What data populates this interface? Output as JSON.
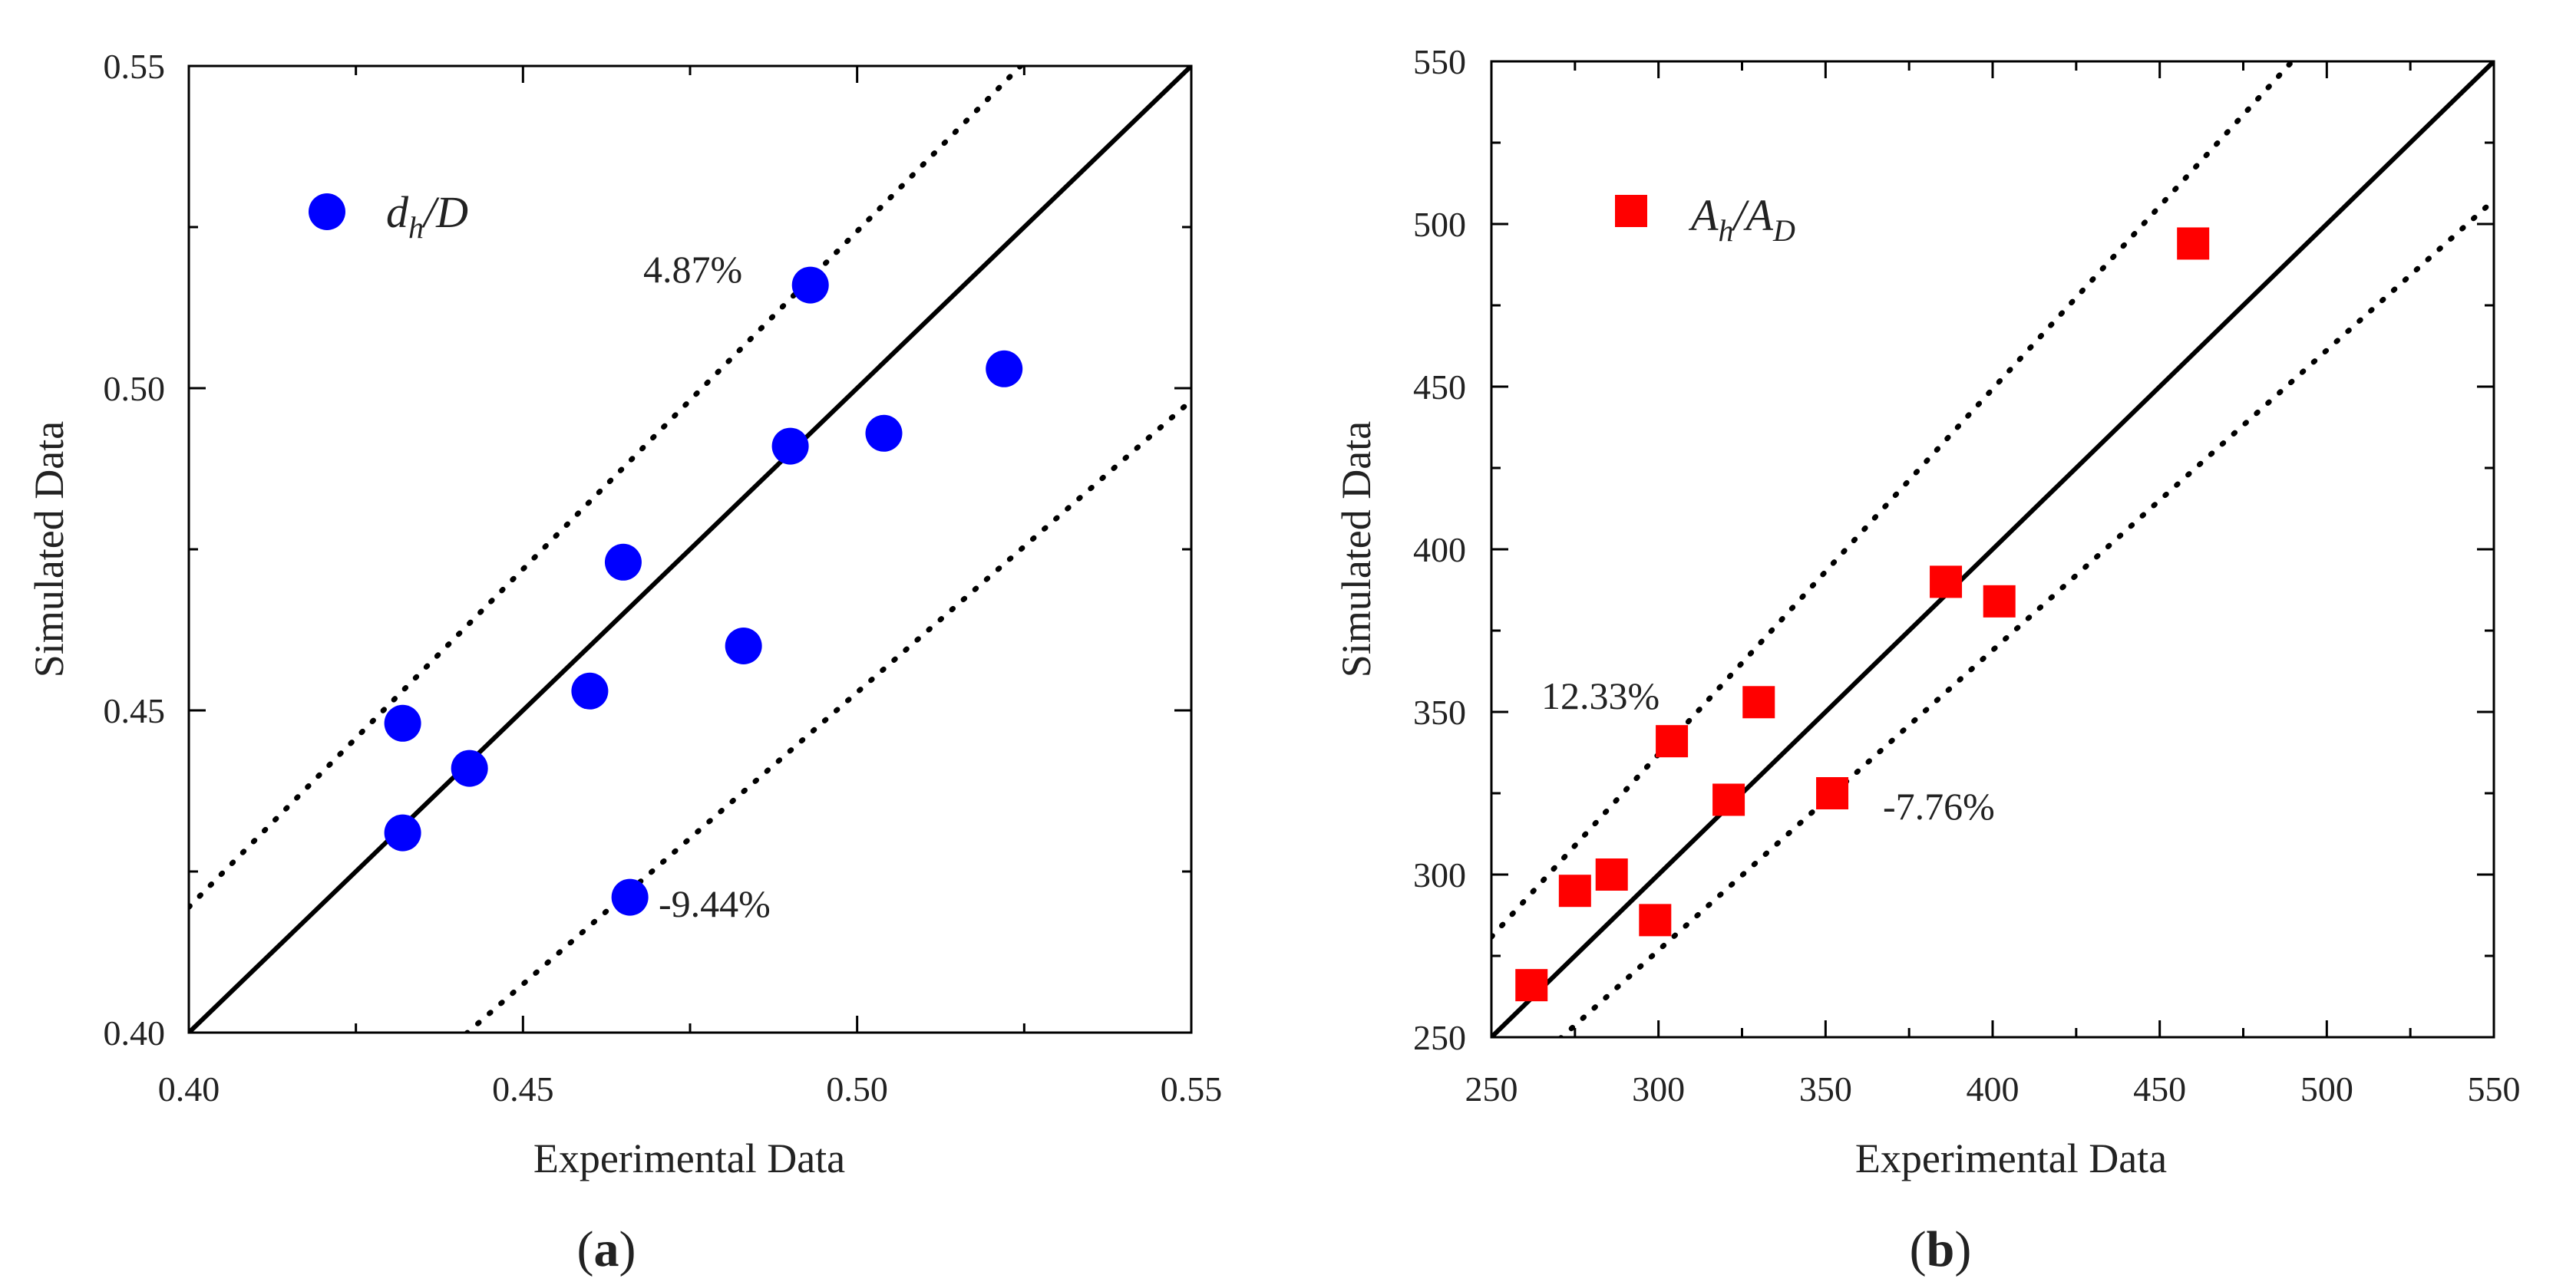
{
  "colors": {
    "blue": "#0000ff",
    "red": "#ff0000",
    "line": "#000000"
  },
  "chart_data": [
    {
      "id": "a",
      "type": "scatter",
      "panel_label": "a",
      "xlabel": "Experimental Data",
      "ylabel": "Simulated Data",
      "xlim": [
        0.4,
        0.55
      ],
      "ylim": [
        0.4,
        0.55
      ],
      "xticks": [
        "0.40",
        "0.45",
        "0.50",
        "0.55"
      ],
      "yticks": [
        "0.40",
        "0.45",
        "0.50",
        "0.55"
      ],
      "marker": "circle",
      "color": "#0000ff",
      "legend": {
        "main": "d",
        "sub": "h",
        "tail": "/D",
        "tail_sub": ""
      },
      "points": [
        [
          0.432,
          0.448
        ],
        [
          0.432,
          0.431
        ],
        [
          0.442,
          0.441
        ],
        [
          0.46,
          0.453
        ],
        [
          0.465,
          0.473
        ],
        [
          0.466,
          0.421
        ],
        [
          0.483,
          0.46
        ],
        [
          0.49,
          0.491
        ],
        [
          0.493,
          0.516
        ],
        [
          0.504,
          0.493
        ],
        [
          0.522,
          0.503
        ]
      ],
      "lines": {
        "diagonal": [
          [
            0.4,
            0.4
          ],
          [
            0.55,
            0.55
          ]
        ],
        "upper_factor": 1.0487,
        "lower_factor": 0.9056
      },
      "annotations": {
        "upper": "4.87%",
        "lower": "-9.44%"
      }
    },
    {
      "id": "b",
      "type": "scatter",
      "panel_label": "b",
      "xlabel": "Experimental Data",
      "ylabel": "Simulated Data",
      "xlim": [
        250,
        550
      ],
      "ylim": [
        250,
        550
      ],
      "xticks": [
        "250",
        "300",
        "350",
        "400",
        "450",
        "500",
        "550"
      ],
      "yticks": [
        "250",
        "300",
        "350",
        "400",
        "450",
        "500",
        "550"
      ],
      "marker": "square",
      "color": "#ff0000",
      "legend": {
        "main": "A",
        "sub": "h",
        "tail": "/A",
        "tail_sub": "D"
      },
      "points": [
        [
          262,
          266
        ],
        [
          275,
          295
        ],
        [
          286,
          300
        ],
        [
          299,
          286
        ],
        [
          304,
          341
        ],
        [
          321,
          323
        ],
        [
          330,
          353
        ],
        [
          352,
          325
        ],
        [
          386,
          390
        ],
        [
          402,
          384
        ],
        [
          460,
          494
        ]
      ],
      "lines": {
        "diagonal": [
          [
            250,
            250
          ],
          [
            550,
            550
          ]
        ],
        "upper_factor": 1.1233,
        "lower_factor": 0.9224
      },
      "annotations": {
        "upper": "12.33%",
        "lower": "-7.76%"
      }
    }
  ]
}
